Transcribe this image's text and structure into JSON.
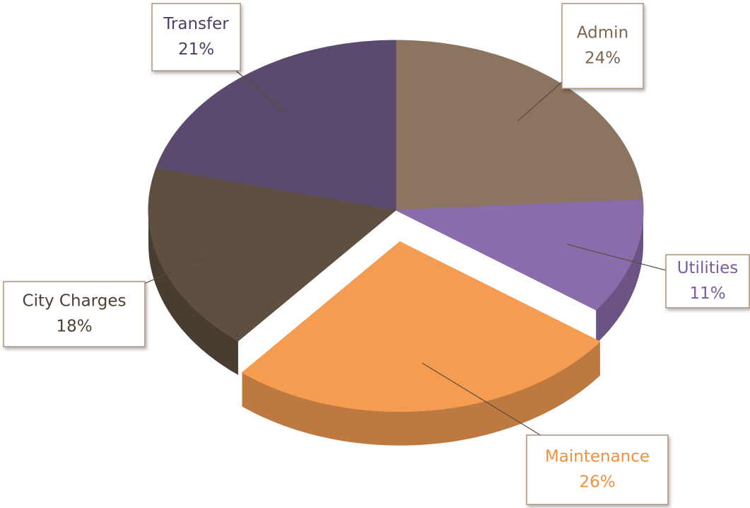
{
  "chart_data": {
    "type": "pie",
    "categories": [
      "Admin",
      "Utilities",
      "Maintenance",
      "City Charges",
      "Transfer"
    ],
    "values": [
      24,
      11,
      26,
      18,
      21
    ],
    "value_labels": [
      "24%",
      "11%",
      "26%",
      "18%",
      "21%"
    ],
    "colors": [
      "#8c7560",
      "#8a6cab",
      "#f39c52",
      "#5e4f40",
      "#5a4a6d"
    ],
    "label_colors": [
      "#7d6550",
      "#7a5ca0",
      "#f0903c",
      "#4e3f30",
      "#4e3d66"
    ],
    "exploded_slice": "Maintenance"
  }
}
